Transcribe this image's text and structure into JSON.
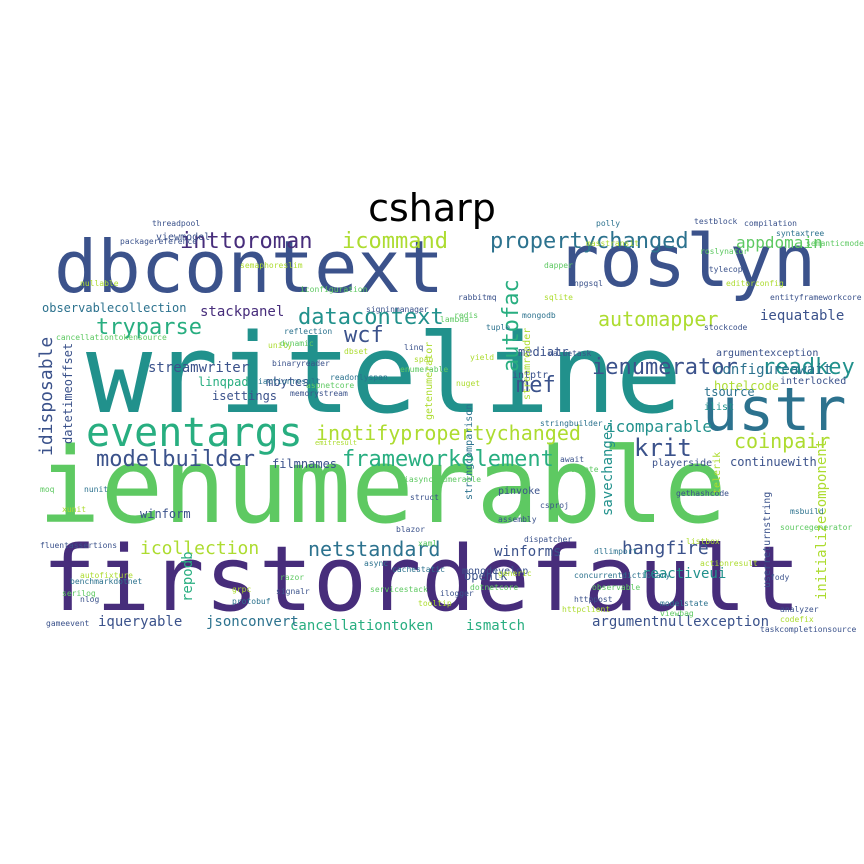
{
  "title": "csharp",
  "words": [
    {
      "text": "writeline",
      "color": "#21918c"
    },
    {
      "text": "ienumerable",
      "color": "#5ec962"
    },
    {
      "text": "firstordefault",
      "color": "#472d7b"
    },
    {
      "text": "dbcontext",
      "color": "#3b528b"
    },
    {
      "text": "roslyn",
      "color": "#3b528b"
    },
    {
      "text": "ustr",
      "color": "#2c728e"
    },
    {
      "text": "eventargs",
      "color": "#28ae80"
    },
    {
      "text": "inttoroman",
      "color": "#472d7b"
    },
    {
      "text": "icommand",
      "color": "#addc30"
    },
    {
      "text": "propertychanged",
      "color": "#2c728e"
    },
    {
      "text": "appdomain",
      "color": "#5ec962"
    },
    {
      "text": "automapper",
      "color": "#addc30"
    },
    {
      "text": "datacontext",
      "color": "#21918c"
    },
    {
      "text": "tryparse",
      "color": "#28ae80"
    },
    {
      "text": "wcf",
      "color": "#3b528b"
    },
    {
      "text": "autofac",
      "color": "#28ae80"
    },
    {
      "text": "readkey",
      "color": "#21918c"
    },
    {
      "text": "ienumerator",
      "color": "#3b528b"
    },
    {
      "text": "inotifypropertychanged",
      "color": "#addc30"
    },
    {
      "text": "frameworkelement",
      "color": "#28ae80"
    },
    {
      "text": "modelbuilder",
      "color": "#3b528b"
    },
    {
      "text": "krit",
      "color": "#3b528b"
    },
    {
      "text": "coinpair",
      "color": "#addc30"
    },
    {
      "text": "mef",
      "color": "#3b528b"
    },
    {
      "text": "idisposable",
      "color": "#3b528b"
    },
    {
      "text": "netstandard",
      "color": "#2c728e"
    },
    {
      "text": "icollection",
      "color": "#addc30"
    },
    {
      "text": "hangfire",
      "color": "#3b528b"
    },
    {
      "text": "winforms",
      "color": "#3b528b"
    },
    {
      "text": "reactiveui",
      "color": "#21918c"
    },
    {
      "text": "cancellationtoken",
      "color": "#28ae80"
    },
    {
      "text": "ismatch",
      "color": "#28ae80"
    },
    {
      "text": "argumentnullexception",
      "color": "#3b528b"
    },
    {
      "text": "jsonconvert",
      "color": "#2c728e"
    },
    {
      "text": "iqueryable",
      "color": "#3b528b"
    },
    {
      "text": "repodb",
      "color": "#28ae80"
    },
    {
      "text": "savechanges",
      "color": "#21918c"
    },
    {
      "text": "initializecomponent",
      "color": "#addc30"
    },
    {
      "text": "configureawait",
      "color": "#2c728e"
    },
    {
      "text": "iequatable",
      "color": "#3b528b"
    },
    {
      "text": "stackpanel",
      "color": "#472d7b"
    },
    {
      "text": "observablecollection",
      "color": "#2c728e"
    },
    {
      "text": "streamwriter",
      "color": "#3b528b"
    },
    {
      "text": "linqpad",
      "color": "#28ae80"
    },
    {
      "text": "mbytes",
      "color": "#3b528b"
    },
    {
      "text": "isettings",
      "color": "#3b528b"
    },
    {
      "text": "datetimeoffset",
      "color": "#3b528b"
    },
    {
      "text": "filmnames",
      "color": "#3b528b"
    },
    {
      "text": "icomparable",
      "color": "#21918c"
    },
    {
      "text": "continuewith",
      "color": "#3b528b"
    },
    {
      "text": "argumentexception",
      "color": "#3b528b"
    },
    {
      "text": "hotelcode",
      "color": "#addc30"
    },
    {
      "text": "interlocked",
      "color": "#3b528b"
    },
    {
      "text": "tsource",
      "color": "#2c728e"
    },
    {
      "text": "ilist",
      "color": "#21918c"
    },
    {
      "text": "mediatr",
      "color": "#3b528b"
    },
    {
      "text": "viewmodel",
      "color": "#3b528b"
    },
    {
      "text": "winform",
      "color": "#3b528b"
    },
    {
      "text": "opentk",
      "color": "#3b528b"
    },
    {
      "text": "monodevelop",
      "color": "#3b528b"
    },
    {
      "text": "pinvoke",
      "color": "#3b528b"
    },
    {
      "text": "playerside",
      "color": "#3b528b"
    },
    {
      "text": "getenumerator",
      "color": "#addc30"
    },
    {
      "text": "stringcomparison",
      "color": "#2c728e"
    },
    {
      "text": "streamreader",
      "color": "#addc30"
    },
    {
      "text": "intptr",
      "color": "#3b528b"
    },
    {
      "text": "userreturnstring",
      "color": "#3b528b"
    },
    {
      "text": "telerik",
      "color": "#addc30"
    },
    {
      "text": "packagereference",
      "color": "#3b528b"
    },
    {
      "text": "binaryreader",
      "color": "#3b528b"
    },
    {
      "text": "signinmanager",
      "color": "#3b528b"
    },
    {
      "text": "entityframeworkcore",
      "color": "#3b528b"
    },
    {
      "text": "stockcode",
      "color": "#3b528b"
    },
    {
      "text": "gameevent",
      "color": "#3b528b"
    },
    {
      "text": "iconfiguration",
      "color": "#5ec962"
    },
    {
      "text": "aspnetcore",
      "color": "#5ec962"
    },
    {
      "text": "nullable",
      "color": "#addc30"
    },
    {
      "text": "cachestatic",
      "color": "#2c728e"
    },
    {
      "text": "tooltip",
      "color": "#addc30"
    },
    {
      "text": "enumerable",
      "color": "#5ec962"
    },
    {
      "text": "fody",
      "color": "#3b528b"
    },
    {
      "text": "testblock",
      "color": "#3b528b"
    },
    {
      "text": "servicestack",
      "color": "#5ec962"
    },
    {
      "text": "dotnetcore",
      "color": "#5ec962"
    },
    {
      "text": "nuget",
      "color": "#addc30"
    },
    {
      "text": "gethashcode",
      "color": "#3b528b"
    },
    {
      "text": "listbox",
      "color": "#addc30"
    },
    {
      "text": "taskcompletionsource",
      "color": "#3b528b"
    },
    {
      "text": "stringbuilder",
      "color": "#2c728e"
    },
    {
      "text": "memorystream",
      "color": "#3b528b"
    },
    {
      "text": "httpclient",
      "color": "#addc30"
    },
    {
      "text": "csproj",
      "color": "#3b528b"
    },
    {
      "text": "dllimport",
      "color": "#2c728e"
    },
    {
      "text": "dispatcher",
      "color": "#3b528b"
    },
    {
      "text": "xaml",
      "color": "#5ec962"
    },
    {
      "text": "unity",
      "color": "#addc30"
    },
    {
      "text": "blazor",
      "color": "#3b528b"
    },
    {
      "text": "linq",
      "color": "#3b528b"
    },
    {
      "text": "lambda",
      "color": "#5ec962"
    },
    {
      "text": "async",
      "color": "#2c728e"
    },
    {
      "text": "await",
      "color": "#3b528b"
    },
    {
      "text": "delegate",
      "color": "#5ec962"
    },
    {
      "text": "generic",
      "color": "#addc30"
    },
    {
      "text": "assembly",
      "color": "#3b528b"
    },
    {
      "text": "reflection",
      "color": "#2c728e"
    },
    {
      "text": "dynamic",
      "color": "#5ec962"
    },
    {
      "text": "struct",
      "color": "#3b528b"
    },
    {
      "text": "yield",
      "color": "#addc30"
    },
    {
      "text": "tuple",
      "color": "#2c728e"
    },
    {
      "text": "iasyncenumerable",
      "color": "#5ec962"
    },
    {
      "text": "valuetask",
      "color": "#3b528b"
    },
    {
      "text": "span",
      "color": "#addc30"
    },
    {
      "text": "readonlyspan",
      "color": "#2c728e"
    },
    {
      "text": "cancellationtokensource",
      "color": "#5ec962"
    },
    {
      "text": "threadpool",
      "color": "#3b528b"
    },
    {
      "text": "semaphoreslim",
      "color": "#addc30"
    },
    {
      "text": "concurrentdictionary",
      "color": "#2c728e"
    },
    {
      "text": "observable",
      "color": "#5ec962"
    },
    {
      "text": "ilogger",
      "color": "#3b528b"
    },
    {
      "text": "dbset",
      "color": "#addc30"
    },
    {
      "text": "modelstate",
      "color": "#2c728e"
    },
    {
      "text": "viewbag",
      "color": "#5ec962"
    },
    {
      "text": "httppost",
      "color": "#3b528b"
    },
    {
      "text": "actionresult",
      "color": "#addc30"
    },
    {
      "text": "iactionresult",
      "color": "#2c728e"
    },
    {
      "text": "razor",
      "color": "#5ec962"
    },
    {
      "text": "signalr",
      "color": "#3b528b"
    },
    {
      "text": "grpc",
      "color": "#addc30"
    },
    {
      "text": "protobuf",
      "color": "#2c728e"
    },
    {
      "text": "dapper",
      "color": "#5ec962"
    },
    {
      "text": "npgsql",
      "color": "#3b528b"
    },
    {
      "text": "sqlite",
      "color": "#addc30"
    },
    {
      "text": "mongodb",
      "color": "#2c728e"
    },
    {
      "text": "redis",
      "color": "#5ec962"
    },
    {
      "text": "rabbitmq",
      "color": "#3b528b"
    },
    {
      "text": "masstransit",
      "color": "#addc30"
    },
    {
      "text": "polly",
      "color": "#2c728e"
    },
    {
      "text": "serilog",
      "color": "#5ec962"
    },
    {
      "text": "nlog",
      "color": "#3b528b"
    },
    {
      "text": "xunit",
      "color": "#addc30"
    },
    {
      "text": "nunit",
      "color": "#2c728e"
    },
    {
      "text": "moq",
      "color": "#5ec962"
    },
    {
      "text": "fluentassertions",
      "color": "#3b528b"
    },
    {
      "text": "autofixture",
      "color": "#addc30"
    },
    {
      "text": "benchmarkdotnet",
      "color": "#2c728e"
    },
    {
      "text": "roslynator",
      "color": "#5ec962"
    },
    {
      "text": "stylecop",
      "color": "#3b528b"
    },
    {
      "text": "editorconfig",
      "color": "#addc30"
    },
    {
      "text": "msbuild",
      "color": "#2c728e"
    },
    {
      "text": "sourcegenerator",
      "color": "#5ec962"
    },
    {
      "text": "analyzer",
      "color": "#3b528b"
    },
    {
      "text": "codefix",
      "color": "#addc30"
    },
    {
      "text": "syntaxtree",
      "color": "#2c728e"
    },
    {
      "text": "semanticmodel",
      "color": "#5ec962"
    },
    {
      "text": "compilation",
      "color": "#3b528b"
    },
    {
      "text": "emitresult",
      "color": "#addc30"
    }
  ]
}
